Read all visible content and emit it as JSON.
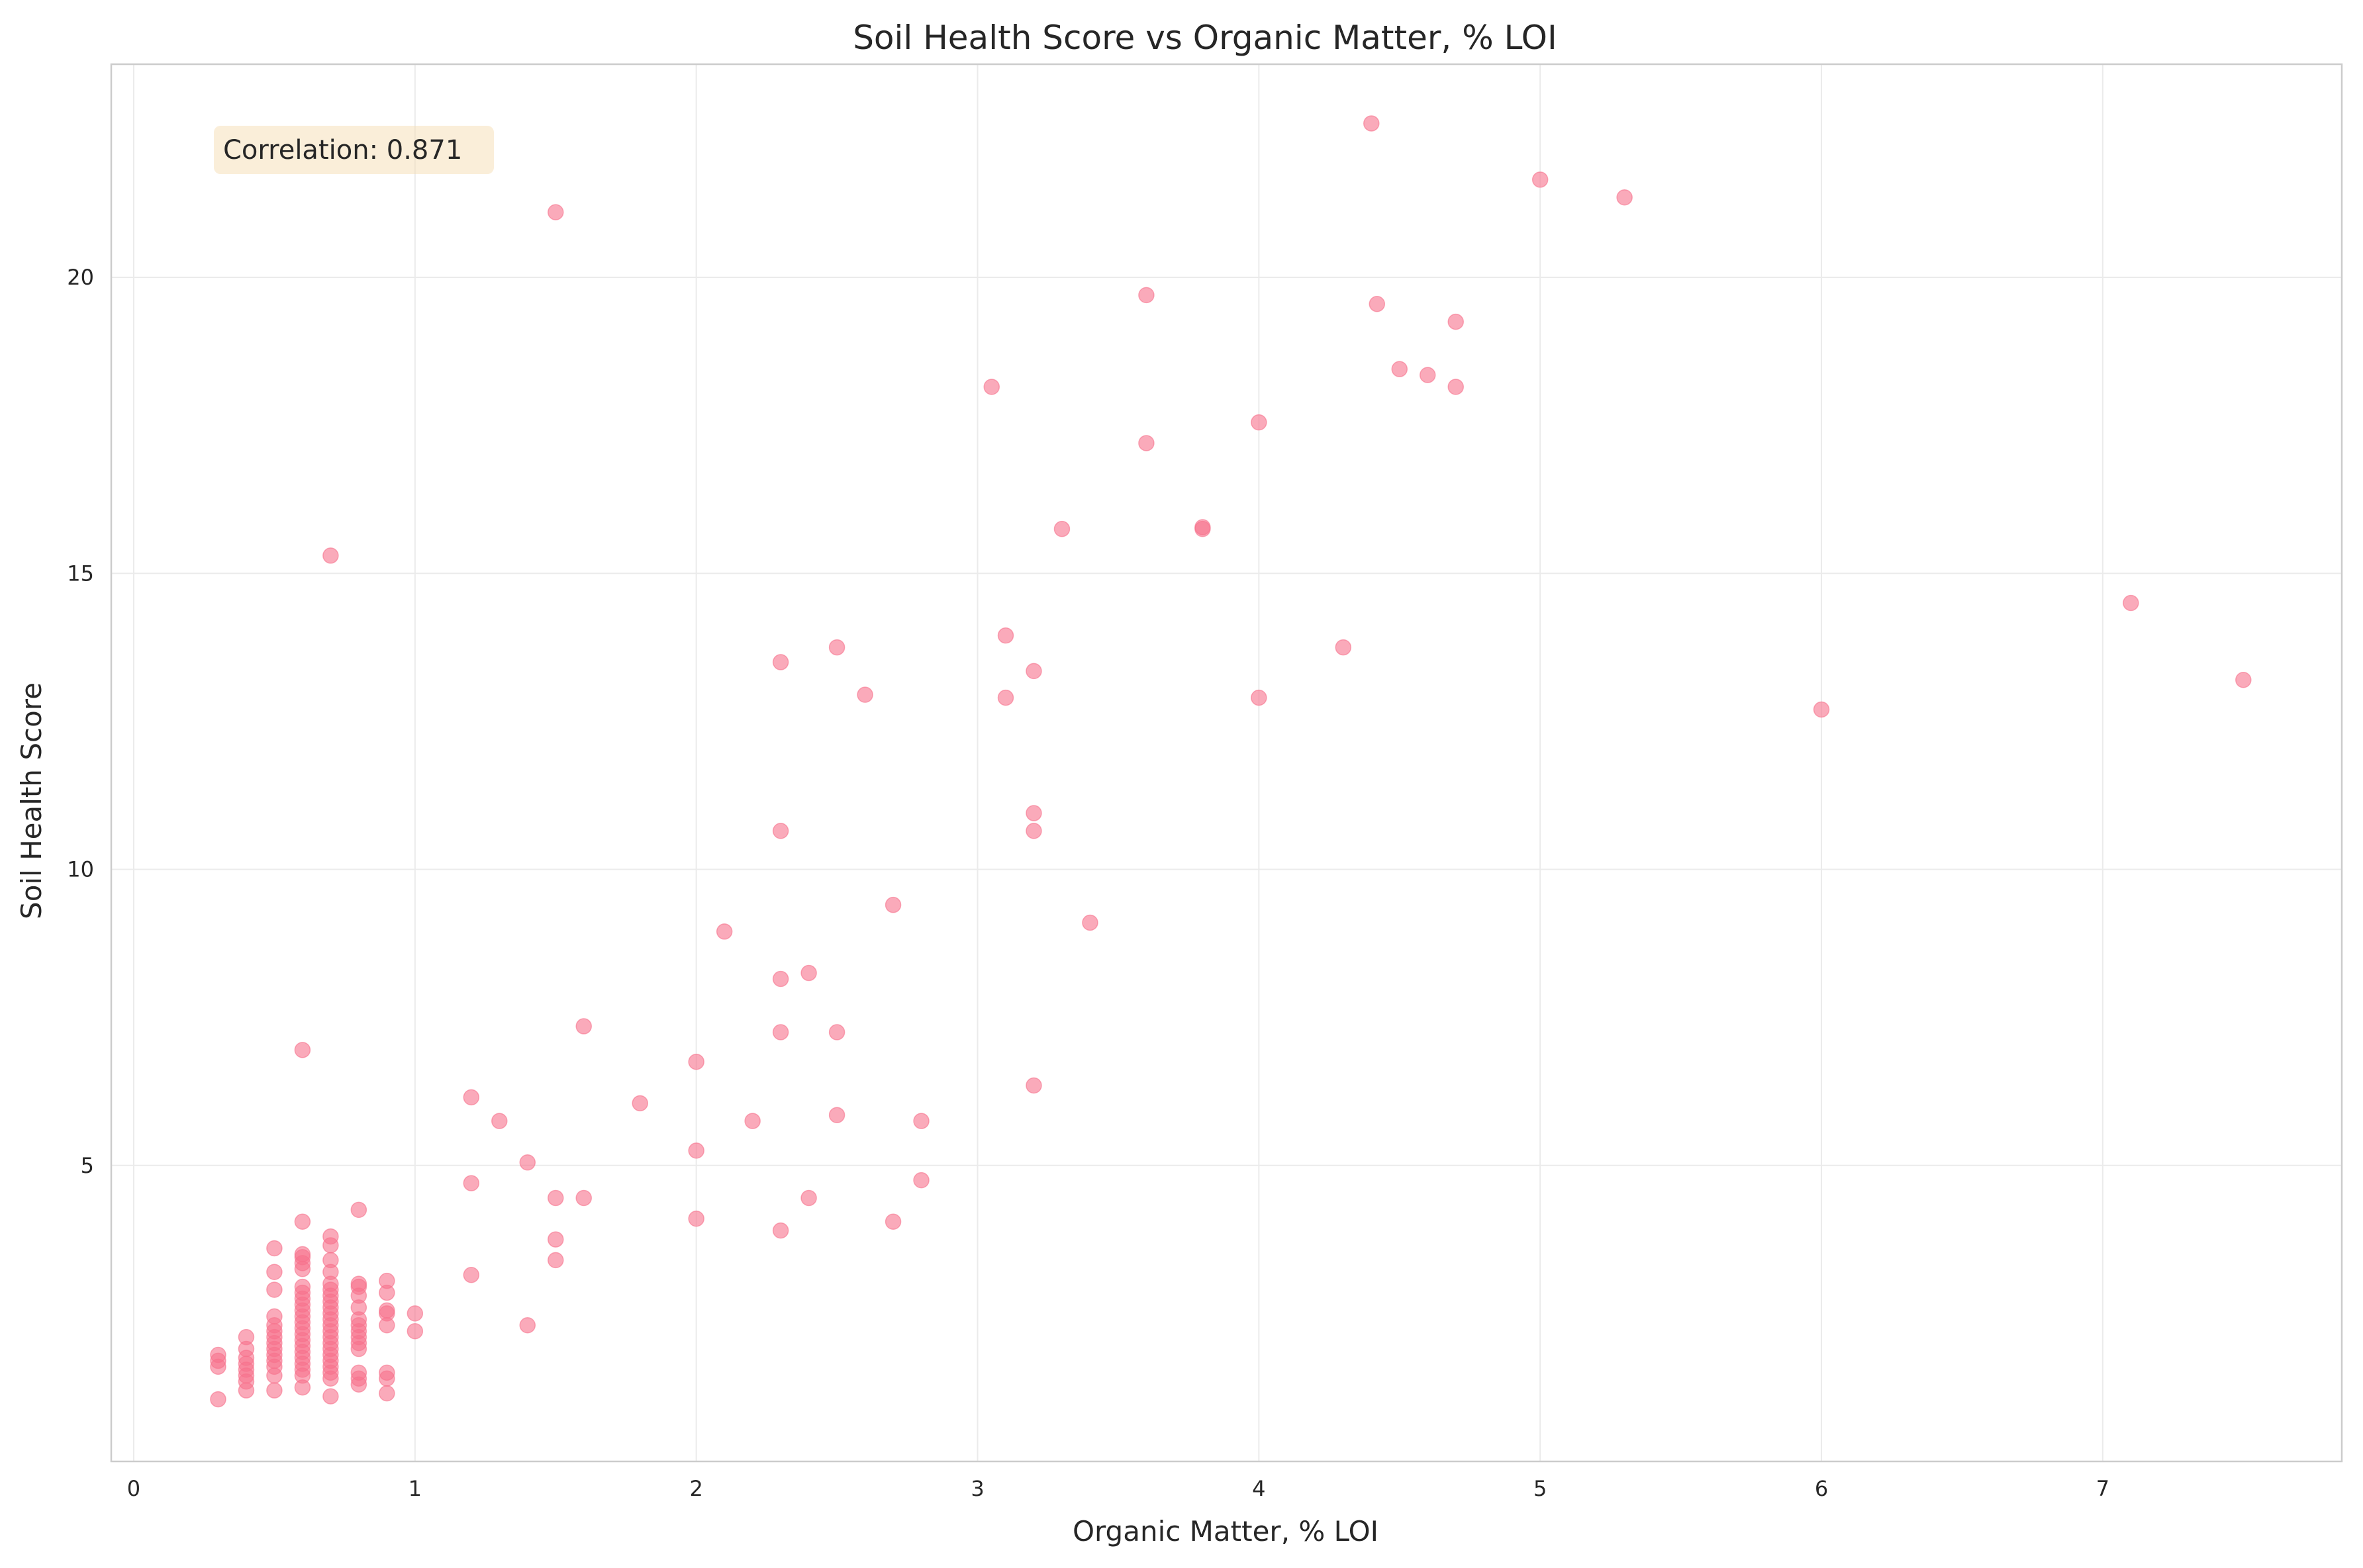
{
  "chart_data": {
    "type": "scatter",
    "title": "Soil Health Score vs Organic Matter, % LOI",
    "xlabel": "Organic Matter, % LOI",
    "ylabel": "Soil Health Score",
    "xlim": [
      -0.08,
      7.85
    ],
    "ylim": [
      0,
      23.6
    ],
    "xticks": [
      0,
      1,
      2,
      3,
      4,
      5,
      6,
      7
    ],
    "yticks": [
      5,
      10,
      15,
      20
    ],
    "grid": true,
    "color": "#f7728c",
    "annotation": "Correlation: 0.871",
    "annotation_position": "top-left",
    "points": [
      [
        0.3,
        1.05
      ],
      [
        0.3,
        1.6
      ],
      [
        0.3,
        1.7
      ],
      [
        0.3,
        1.8
      ],
      [
        0.4,
        1.2
      ],
      [
        0.4,
        1.35
      ],
      [
        0.4,
        1.45
      ],
      [
        0.4,
        1.55
      ],
      [
        0.4,
        1.65
      ],
      [
        0.4,
        1.75
      ],
      [
        0.4,
        1.9
      ],
      [
        0.4,
        2.1
      ],
      [
        0.5,
        1.2
      ],
      [
        0.5,
        1.45
      ],
      [
        0.5,
        1.6
      ],
      [
        0.5,
        1.7
      ],
      [
        0.5,
        1.8
      ],
      [
        0.5,
        1.9
      ],
      [
        0.5,
        2.0
      ],
      [
        0.5,
        2.1
      ],
      [
        0.5,
        2.2
      ],
      [
        0.5,
        2.3
      ],
      [
        0.5,
        2.45
      ],
      [
        0.5,
        2.9
      ],
      [
        0.5,
        3.2
      ],
      [
        0.5,
        3.6
      ],
      [
        0.6,
        1.25
      ],
      [
        0.6,
        1.45
      ],
      [
        0.6,
        1.55
      ],
      [
        0.6,
        1.65
      ],
      [
        0.6,
        1.75
      ],
      [
        0.6,
        1.85
      ],
      [
        0.6,
        1.95
      ],
      [
        0.6,
        2.05
      ],
      [
        0.6,
        2.15
      ],
      [
        0.6,
        2.25
      ],
      [
        0.6,
        2.35
      ],
      [
        0.6,
        2.45
      ],
      [
        0.6,
        2.55
      ],
      [
        0.6,
        2.65
      ],
      [
        0.6,
        2.75
      ],
      [
        0.6,
        2.85
      ],
      [
        0.6,
        2.95
      ],
      [
        0.6,
        3.25
      ],
      [
        0.6,
        3.35
      ],
      [
        0.6,
        3.45
      ],
      [
        0.6,
        3.5
      ],
      [
        0.6,
        4.05
      ],
      [
        0.6,
        6.95
      ],
      [
        0.7,
        1.1
      ],
      [
        0.7,
        1.4
      ],
      [
        0.7,
        1.5
      ],
      [
        0.7,
        1.6
      ],
      [
        0.7,
        1.7
      ],
      [
        0.7,
        1.8
      ],
      [
        0.7,
        1.9
      ],
      [
        0.7,
        2.0
      ],
      [
        0.7,
        2.1
      ],
      [
        0.7,
        2.2
      ],
      [
        0.7,
        2.3
      ],
      [
        0.7,
        2.4
      ],
      [
        0.7,
        2.5
      ],
      [
        0.7,
        2.6
      ],
      [
        0.7,
        2.7
      ],
      [
        0.7,
        2.8
      ],
      [
        0.7,
        2.9
      ],
      [
        0.7,
        3.0
      ],
      [
        0.7,
        3.2
      ],
      [
        0.7,
        3.4
      ],
      [
        0.7,
        3.65
      ],
      [
        0.7,
        3.8
      ],
      [
        0.7,
        15.3
      ],
      [
        0.8,
        1.3
      ],
      [
        0.8,
        1.4
      ],
      [
        0.8,
        1.5
      ],
      [
        0.8,
        1.9
      ],
      [
        0.8,
        2.0
      ],
      [
        0.8,
        2.1
      ],
      [
        0.8,
        2.2
      ],
      [
        0.8,
        2.3
      ],
      [
        0.8,
        2.4
      ],
      [
        0.8,
        2.6
      ],
      [
        0.8,
        2.8
      ],
      [
        0.8,
        2.95
      ],
      [
        0.8,
        3.0
      ],
      [
        0.8,
        4.25
      ],
      [
        0.9,
        1.15
      ],
      [
        0.9,
        1.4
      ],
      [
        0.9,
        1.5
      ],
      [
        0.9,
        2.3
      ],
      [
        0.9,
        2.5
      ],
      [
        0.9,
        2.55
      ],
      [
        0.9,
        2.85
      ],
      [
        0.9,
        3.05
      ],
      [
        1.0,
        2.2
      ],
      [
        1.0,
        2.5
      ],
      [
        1.2,
        3.15
      ],
      [
        1.2,
        4.7
      ],
      [
        1.2,
        6.15
      ],
      [
        1.3,
        5.75
      ],
      [
        1.4,
        2.3
      ],
      [
        1.4,
        5.05
      ],
      [
        1.5,
        3.4
      ],
      [
        1.5,
        3.75
      ],
      [
        1.5,
        4.45
      ],
      [
        1.5,
        21.1
      ],
      [
        1.6,
        4.45
      ],
      [
        1.6,
        7.35
      ],
      [
        1.8,
        6.05
      ],
      [
        2.0,
        4.1
      ],
      [
        2.0,
        5.25
      ],
      [
        2.0,
        6.75
      ],
      [
        2.1,
        8.95
      ],
      [
        2.2,
        5.75
      ],
      [
        2.3,
        3.9
      ],
      [
        2.3,
        7.25
      ],
      [
        2.3,
        8.15
      ],
      [
        2.3,
        10.65
      ],
      [
        2.3,
        13.5
      ],
      [
        2.4,
        4.45
      ],
      [
        2.4,
        8.25
      ],
      [
        2.5,
        5.85
      ],
      [
        2.5,
        7.25
      ],
      [
        2.5,
        13.75
      ],
      [
        2.6,
        12.95
      ],
      [
        2.7,
        4.05
      ],
      [
        2.7,
        9.4
      ],
      [
        2.8,
        4.75
      ],
      [
        2.8,
        5.75
      ],
      [
        3.05,
        18.15
      ],
      [
        3.1,
        12.9
      ],
      [
        3.1,
        13.95
      ],
      [
        3.2,
        6.35
      ],
      [
        3.2,
        10.65
      ],
      [
        3.2,
        10.95
      ],
      [
        3.2,
        13.35
      ],
      [
        3.3,
        15.75
      ],
      [
        3.4,
        9.1
      ],
      [
        3.6,
        17.2
      ],
      [
        3.6,
        19.7
      ],
      [
        3.8,
        15.75
      ],
      [
        3.8,
        15.78
      ],
      [
        4.0,
        12.9
      ],
      [
        4.0,
        17.55
      ],
      [
        4.3,
        13.75
      ],
      [
        4.4,
        22.6
      ],
      [
        4.42,
        19.55
      ],
      [
        4.5,
        18.45
      ],
      [
        4.6,
        18.35
      ],
      [
        4.7,
        18.15
      ],
      [
        4.7,
        19.25
      ],
      [
        5.0,
        21.65
      ],
      [
        5.3,
        21.35
      ],
      [
        6.0,
        12.7
      ],
      [
        7.1,
        14.5
      ],
      [
        7.5,
        13.2
      ]
    ]
  }
}
